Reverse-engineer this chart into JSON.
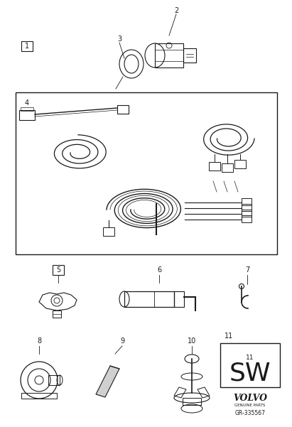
{
  "bg_color": "#ffffff",
  "line_color": "#1a1a1a",
  "fig_width": 4.11,
  "fig_height": 6.01,
  "dpi": 100,
  "volvo_text": "VOLVO",
  "genuine_text": "GENUINE PARTS",
  "ref_text": "GR-335567",
  "sw_text": "SW"
}
